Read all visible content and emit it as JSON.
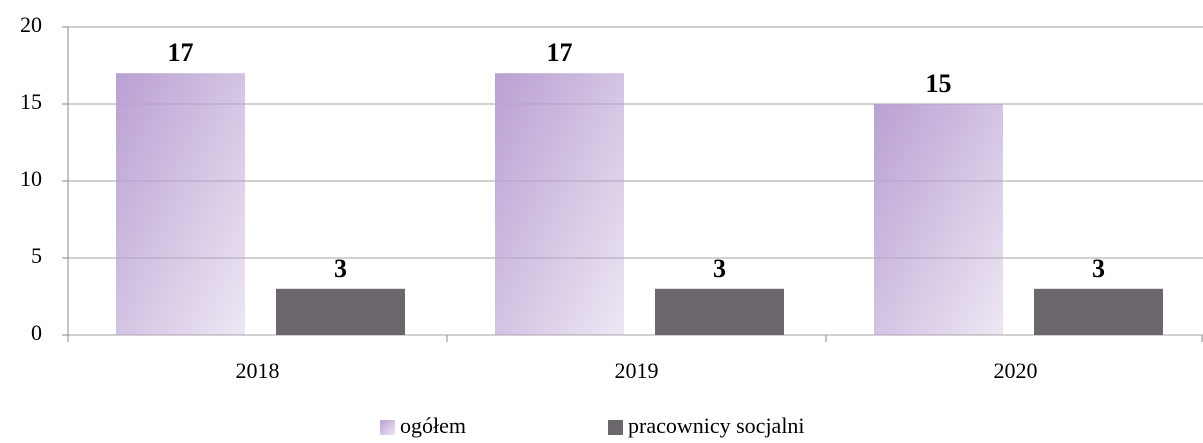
{
  "chart_data": {
    "type": "bar",
    "categories": [
      "2018",
      "2019",
      "2020"
    ],
    "series": [
      {
        "name": "ogółem",
        "color": "#b9a0d2",
        "values": [
          17,
          17,
          15
        ]
      },
      {
        "name": "pracownicy socjalni",
        "color": "#6b676c",
        "values": [
          3,
          3,
          3
        ]
      }
    ],
    "ylim": [
      0,
      20
    ],
    "yticks": [
      0,
      5,
      10,
      15,
      20
    ],
    "grid": true,
    "legend": "bottom"
  }
}
